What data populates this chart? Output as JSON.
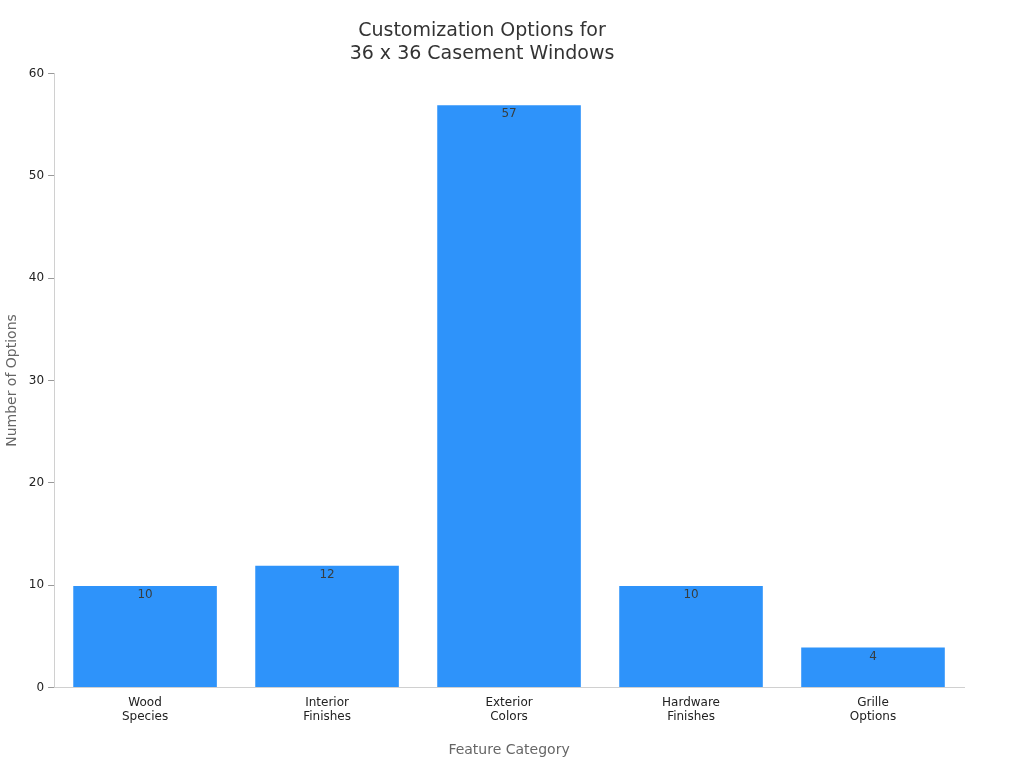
{
  "chart_data": {
    "type": "bar",
    "title": "Customization Options for\n36 x 36 Casement Windows",
    "xlabel": "Feature Category",
    "ylabel": "Number of Options",
    "categories": [
      "Wood\nSpecies",
      "Interior\nFinishes",
      "Exterior\nColors",
      "Hardware\nFinishes",
      "Grille\nOptions"
    ],
    "values": [
      10,
      12,
      57,
      10,
      4
    ],
    "color": "#2e93fa",
    "ylim": [
      0,
      60
    ],
    "yticks": [
      0,
      10,
      20,
      30,
      40,
      50,
      60
    ],
    "grid": false,
    "legend": false,
    "data_labels": true
  }
}
